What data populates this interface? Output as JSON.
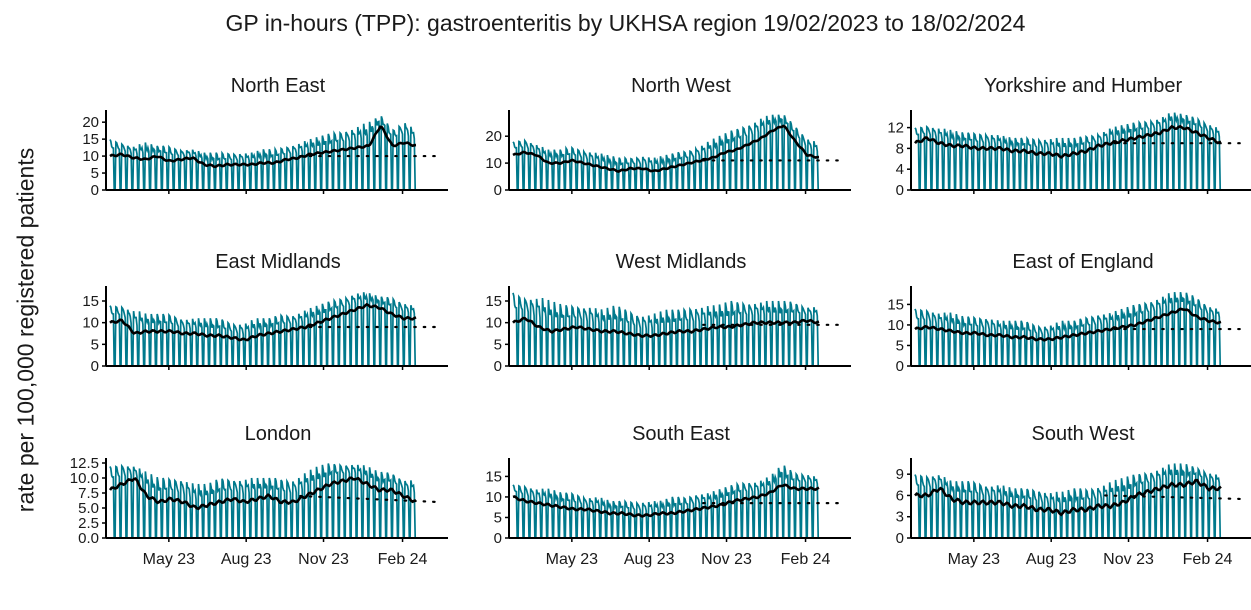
{
  "title": "GP in-hours (TPP): gastroenteritis by UKHSA region 19/02/2023 to 18/02/2024",
  "y_axis_label": "rate per 100,000 registered patients",
  "colors": {
    "daily": "#00798c",
    "smooth": "#000000",
    "baseline": "#000000",
    "axis": "#000000",
    "text": "#1a1a1a"
  },
  "chart_data": [
    {
      "type": "line",
      "title": "North East",
      "x_range": [
        "2023-02-19",
        "2024-02-18"
      ],
      "x_ticks": [
        "May 23",
        "Aug 23",
        "Nov 23",
        "Feb 24"
      ],
      "y_ticks": [
        "0",
        "5",
        "10",
        "15",
        "20"
      ],
      "ylim": [
        0,
        23
      ],
      "smooth": [
        10,
        10.5,
        9.5,
        9,
        10,
        8.5,
        9,
        9.5,
        7.5,
        7,
        7.5,
        7.5,
        7.5,
        8,
        8,
        9,
        9.5,
        10.5,
        11,
        11.5,
        12,
        12.5,
        13,
        19,
        13,
        14,
        13
      ],
      "peaks": [
        15,
        14,
        13,
        14,
        13,
        13,
        12,
        12,
        11,
        11,
        11,
        11,
        11,
        12,
        12,
        13,
        14,
        15,
        16,
        17,
        18,
        19,
        20,
        22,
        18,
        21,
        18
      ],
      "baseline": [
        10,
        10
      ]
    },
    {
      "type": "line",
      "title": "North West",
      "x_range": [
        "2023-02-19",
        "2024-02-18"
      ],
      "x_ticks": [
        "May 23",
        "Aug 23",
        "Nov 23",
        "Feb 24"
      ],
      "y_ticks": [
        "0",
        "10",
        "20"
      ],
      "ylim": [
        0,
        29
      ],
      "smooth": [
        13,
        14,
        13,
        10,
        10,
        11,
        10,
        9,
        8,
        7,
        8,
        8,
        7,
        8,
        9,
        10,
        11,
        12,
        14,
        15,
        17,
        19,
        22,
        24,
        18,
        13,
        12
      ],
      "peaks": [
        18,
        19,
        17,
        15,
        15,
        16,
        15,
        14,
        13,
        12,
        12,
        13,
        12,
        13,
        14,
        15,
        17,
        19,
        21,
        23,
        25,
        27,
        28,
        28,
        24,
        20,
        18
      ],
      "baseline": [
        11,
        11
      ]
    },
    {
      "type": "line",
      "title": "Yorkshire and Humber",
      "x_range": [
        "2023-02-19",
        "2024-02-18"
      ],
      "x_ticks": [
        "May 23",
        "Aug 23",
        "Nov 23",
        "Feb 24"
      ],
      "y_ticks": [
        "0",
        "4",
        "8",
        "12"
      ],
      "ylim": [
        0,
        15
      ],
      "smooth": [
        9,
        10,
        9,
        8.5,
        8.5,
        8,
        8,
        8,
        7.5,
        7.5,
        7,
        7,
        6.5,
        7,
        7.5,
        8.5,
        9,
        9.5,
        10,
        10.5,
        11,
        12,
        12,
        11,
        10,
        9
      ],
      "peaks": [
        12,
        12.5,
        12,
        11.5,
        11,
        11,
        11,
        10.5,
        10,
        10,
        10,
        10,
        10,
        10,
        10.5,
        11,
        12,
        12.5,
        13,
        13.5,
        14,
        15,
        14.5,
        14,
        13,
        12
      ],
      "baseline": [
        9,
        9
      ]
    },
    {
      "type": "line",
      "title": "East Midlands",
      "x_range": [
        "2023-02-19",
        "2024-02-18"
      ],
      "x_ticks": [
        "May 23",
        "Aug 23",
        "Nov 23",
        "Feb 24"
      ],
      "y_ticks": [
        "0",
        "5",
        "10",
        "15"
      ],
      "ylim": [
        0,
        18
      ],
      "smooth": [
        10,
        10.5,
        7.5,
        8,
        8,
        8,
        7.5,
        7.5,
        7,
        7,
        6.5,
        6,
        7,
        7.5,
        8,
        8.5,
        9,
        10,
        11,
        12,
        13,
        14,
        13.5,
        12,
        11,
        11
      ],
      "peaks": [
        14,
        14,
        13,
        12,
        12,
        12,
        11,
        11,
        11,
        11,
        10,
        10,
        11,
        11,
        12,
        12,
        13,
        14,
        15,
        16,
        17,
        17,
        16,
        16,
        15,
        14
      ],
      "baseline": [
        9,
        9
      ]
    },
    {
      "type": "line",
      "title": "West Midlands",
      "x_range": [
        "2023-02-19",
        "2024-02-18"
      ],
      "x_ticks": [
        "May 23",
        "Aug 23",
        "Nov 23",
        "Feb 24"
      ],
      "y_ticks": [
        "0",
        "5",
        "10",
        "15"
      ],
      "ylim": [
        0,
        18
      ],
      "smooth": [
        10,
        11,
        9,
        8,
        8.5,
        9,
        8.5,
        8,
        8,
        7.5,
        7,
        7,
        7.5,
        8,
        8,
        8.5,
        9,
        9,
        9.5,
        10,
        10,
        10,
        10,
        10.5,
        10
      ],
      "peaks": [
        17,
        16,
        16,
        15,
        14,
        14,
        14,
        13,
        14,
        13,
        12,
        12,
        13,
        13,
        14,
        14,
        14,
        15,
        15,
        15,
        15,
        15,
        15,
        14,
        14
      ],
      "baseline": [
        9.5,
        9.5
      ]
    },
    {
      "type": "line",
      "title": "East of England",
      "x_range": [
        "2023-02-19",
        "2024-02-18"
      ],
      "x_ticks": [
        "May 23",
        "Aug 23",
        "Nov 23",
        "Feb 24"
      ],
      "y_ticks": [
        "0",
        "5",
        "10",
        "15"
      ],
      "ylim": [
        0,
        19
      ],
      "smooth": [
        9,
        9.5,
        9,
        8.5,
        8,
        8,
        7.5,
        7.5,
        7,
        7,
        6.5,
        6.5,
        7,
        7.5,
        8,
        8.5,
        9,
        9.5,
        10,
        11,
        12,
        13,
        14,
        12,
        11,
        10.5
      ],
      "peaks": [
        14,
        14,
        13,
        13,
        12,
        12,
        12,
        11,
        11,
        11,
        10,
        10,
        11,
        11,
        12,
        13,
        13,
        14,
        15,
        16,
        17,
        18,
        18,
        17,
        15,
        14
      ],
      "baseline": [
        9,
        9
      ]
    },
    {
      "type": "line",
      "title": "London",
      "x_range": [
        "2023-02-19",
        "2024-02-18"
      ],
      "x_ticks": [
        "May 23",
        "Aug 23",
        "Nov 23",
        "Feb 24"
      ],
      "y_ticks": [
        "0.0",
        "2.5",
        "5.0",
        "7.5",
        "10.0",
        "12.5"
      ],
      "ylim": [
        0,
        13
      ],
      "smooth": [
        8,
        9,
        10,
        7,
        6,
        6.5,
        6,
        5,
        5.5,
        6,
        6.5,
        6,
        6.5,
        7,
        6,
        6,
        7,
        8,
        9,
        9.5,
        10,
        9,
        8,
        8,
        7,
        6
      ],
      "peaks": [
        12,
        12.5,
        12,
        11,
        10,
        10,
        10,
        9,
        9,
        10,
        10,
        10,
        10,
        10,
        10,
        10,
        11,
        12,
        12.5,
        12.5,
        12.5,
        12,
        11,
        11,
        10,
        10
      ],
      "baseline": [
        7,
        6
      ]
    },
    {
      "type": "line",
      "title": "South East",
      "x_range": [
        "2023-02-19",
        "2024-02-18"
      ],
      "x_ticks": [
        "May 23",
        "Aug 23",
        "Nov 23",
        "Feb 24"
      ],
      "y_ticks": [
        "0",
        "5",
        "10",
        "15"
      ],
      "ylim": [
        0,
        19
      ],
      "smooth": [
        10,
        9,
        8.5,
        8,
        7.5,
        7,
        7,
        6.5,
        6,
        6,
        5.5,
        5.5,
        6,
        6,
        6.5,
        7,
        7.5,
        8,
        9,
        9.5,
        10,
        11,
        13,
        12,
        12,
        12
      ],
      "peaks": [
        13,
        13,
        12,
        12,
        11,
        11,
        10,
        10,
        9,
        9,
        9,
        9,
        9,
        10,
        10,
        11,
        11,
        12,
        13,
        14,
        14,
        15,
        18,
        16,
        16,
        15
      ],
      "baseline": [
        8.5,
        8.5
      ]
    },
    {
      "type": "line",
      "title": "South West",
      "x_range": [
        "2023-02-19",
        "2024-02-18"
      ],
      "x_ticks": [
        "May 23",
        "Aug 23",
        "Nov 23",
        "Feb 24"
      ],
      "y_ticks": [
        "0",
        "3",
        "6",
        "9"
      ],
      "ylim": [
        0,
        11
      ],
      "smooth": [
        6,
        6,
        7,
        5.5,
        5,
        5,
        5,
        5,
        4.5,
        4.5,
        4,
        4,
        3.5,
        4,
        4,
        4.5,
        4.5,
        5,
        6,
        6.5,
        7,
        7.5,
        7.5,
        8,
        7,
        7
      ],
      "peaks": [
        9,
        9,
        9,
        8,
        8,
        8,
        7.5,
        7.5,
        7,
        7,
        7,
        6.5,
        6.5,
        7,
        7,
        7.5,
        8,
        8.5,
        9,
        9.5,
        10,
        10.5,
        10.5,
        10,
        9.5,
        9
      ],
      "baseline": [
        6,
        5.5
      ]
    }
  ]
}
